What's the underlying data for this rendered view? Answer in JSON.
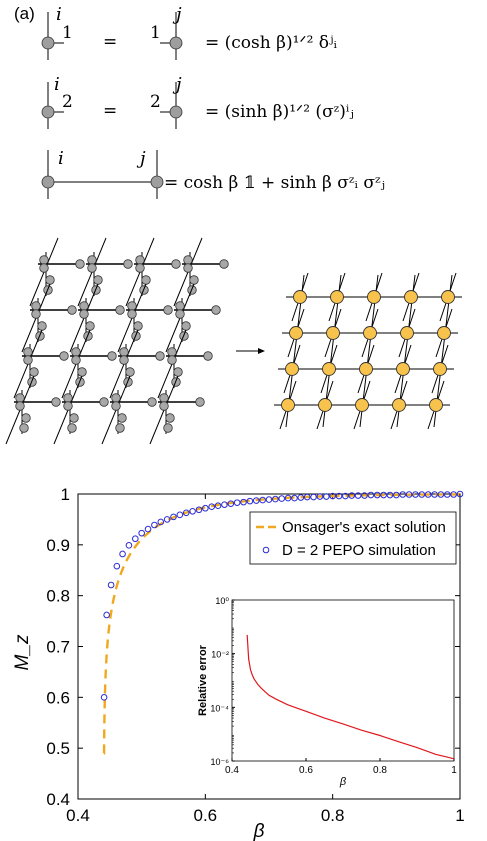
{
  "panel_label": "(a)",
  "equations": [
    {
      "left_index_top": "i",
      "left_index_bond": "1",
      "mid": "=",
      "right_index_bond": "1",
      "right_index_top": "j",
      "rhs": "=  (cosh β)¹ᐟ² δʲᵢ"
    },
    {
      "left_index_top": "i",
      "left_index_bond": "2",
      "mid": "=",
      "right_index_bond": "2",
      "right_index_top": "j",
      "rhs": "=  (sinh β)¹ᐟ² (σᶻ)ⁱⱼ"
    },
    {
      "left_index_top": "i",
      "right_index_top": "j",
      "rhs": "=  cosh β 𝟙 + sinh β σᶻᵢ σᶻⱼ"
    }
  ],
  "chart_data": {
    "type": "line",
    "xlabel": "β",
    "ylabel": "M_z",
    "xlim": [
      0.4,
      1.0
    ],
    "ylim": [
      0.4,
      1.0
    ],
    "xticks": [
      "0.4",
      "0.6",
      "0.8",
      "1"
    ],
    "yticks": [
      "0.4",
      "0.5",
      "0.6",
      "0.7",
      "0.8",
      "0.9",
      "1"
    ],
    "legend_position": "upper-right",
    "series": [
      {
        "name": "Onsager's exact solution",
        "style": "dashed",
        "color": "#f0a81e"
      },
      {
        "name": "D = 2 PEPO simulation",
        "style": "markers",
        "color": "#2b2bd6",
        "x": [
          0.441,
          0.445,
          0.452,
          0.461,
          0.47,
          0.48,
          0.49,
          0.5,
          0.51,
          0.52,
          0.53,
          0.54,
          0.55,
          0.56,
          0.57,
          0.58,
          0.59,
          0.6,
          0.61,
          0.62,
          0.63,
          0.64,
          0.65,
          0.66,
          0.67,
          0.68,
          0.69,
          0.7,
          0.71,
          0.72,
          0.73,
          0.74,
          0.75,
          0.76,
          0.77,
          0.78,
          0.79,
          0.8,
          0.81,
          0.82,
          0.83,
          0.84,
          0.85,
          0.86,
          0.87,
          0.88,
          0.89,
          0.9,
          0.91,
          0.92,
          0.93,
          0.94,
          0.95,
          0.96,
          0.97,
          0.98,
          0.99,
          1.0
        ],
        "y": [
          0.6,
          0.762,
          0.821,
          0.858,
          0.882,
          0.899,
          0.912,
          0.923,
          0.931,
          0.939,
          0.945,
          0.95,
          0.955,
          0.959,
          0.963,
          0.966,
          0.969,
          0.972,
          0.975,
          0.977,
          0.979,
          0.981,
          0.983,
          0.984,
          0.986,
          0.987,
          0.988,
          0.989,
          0.99,
          0.991,
          0.992,
          0.992,
          0.993,
          0.994,
          0.994,
          0.995,
          0.995,
          0.996,
          0.996,
          0.996,
          0.997,
          0.997,
          0.997,
          0.998,
          0.998,
          0.998,
          0.998,
          0.998,
          0.999,
          0.999,
          0.999,
          0.999,
          0.999,
          0.999,
          0.999,
          0.999,
          0.999,
          1.0
        ]
      }
    ],
    "inset": {
      "type": "line",
      "xlabel": "β",
      "ylabel": "Relative error",
      "xlim": [
        0.4,
        1.0
      ],
      "ylim_log10": [
        -6,
        0
      ],
      "xticks": [
        "0.4",
        "0.6",
        "0.8",
        "1"
      ],
      "yticks": [
        "10⁻⁶",
        "10⁻⁴",
        "10⁻²",
        "10⁰"
      ],
      "series": [
        {
          "color": "#e0181e",
          "x": [
            0.441,
            0.445,
            0.45,
            0.455,
            0.46,
            0.47,
            0.48,
            0.5,
            0.52,
            0.55,
            0.58,
            0.6,
            0.65,
            0.7,
            0.75,
            0.8,
            0.85,
            0.9,
            0.93,
            0.95,
            0.98,
            1.0
          ],
          "log10_y": [
            -1.3,
            -2.2,
            -2.6,
            -2.8,
            -2.95,
            -3.15,
            -3.3,
            -3.55,
            -3.7,
            -3.9,
            -4.05,
            -4.15,
            -4.4,
            -4.62,
            -4.85,
            -5.05,
            -5.28,
            -5.5,
            -5.65,
            -5.75,
            -5.85,
            -5.92
          ]
        }
      ]
    }
  }
}
